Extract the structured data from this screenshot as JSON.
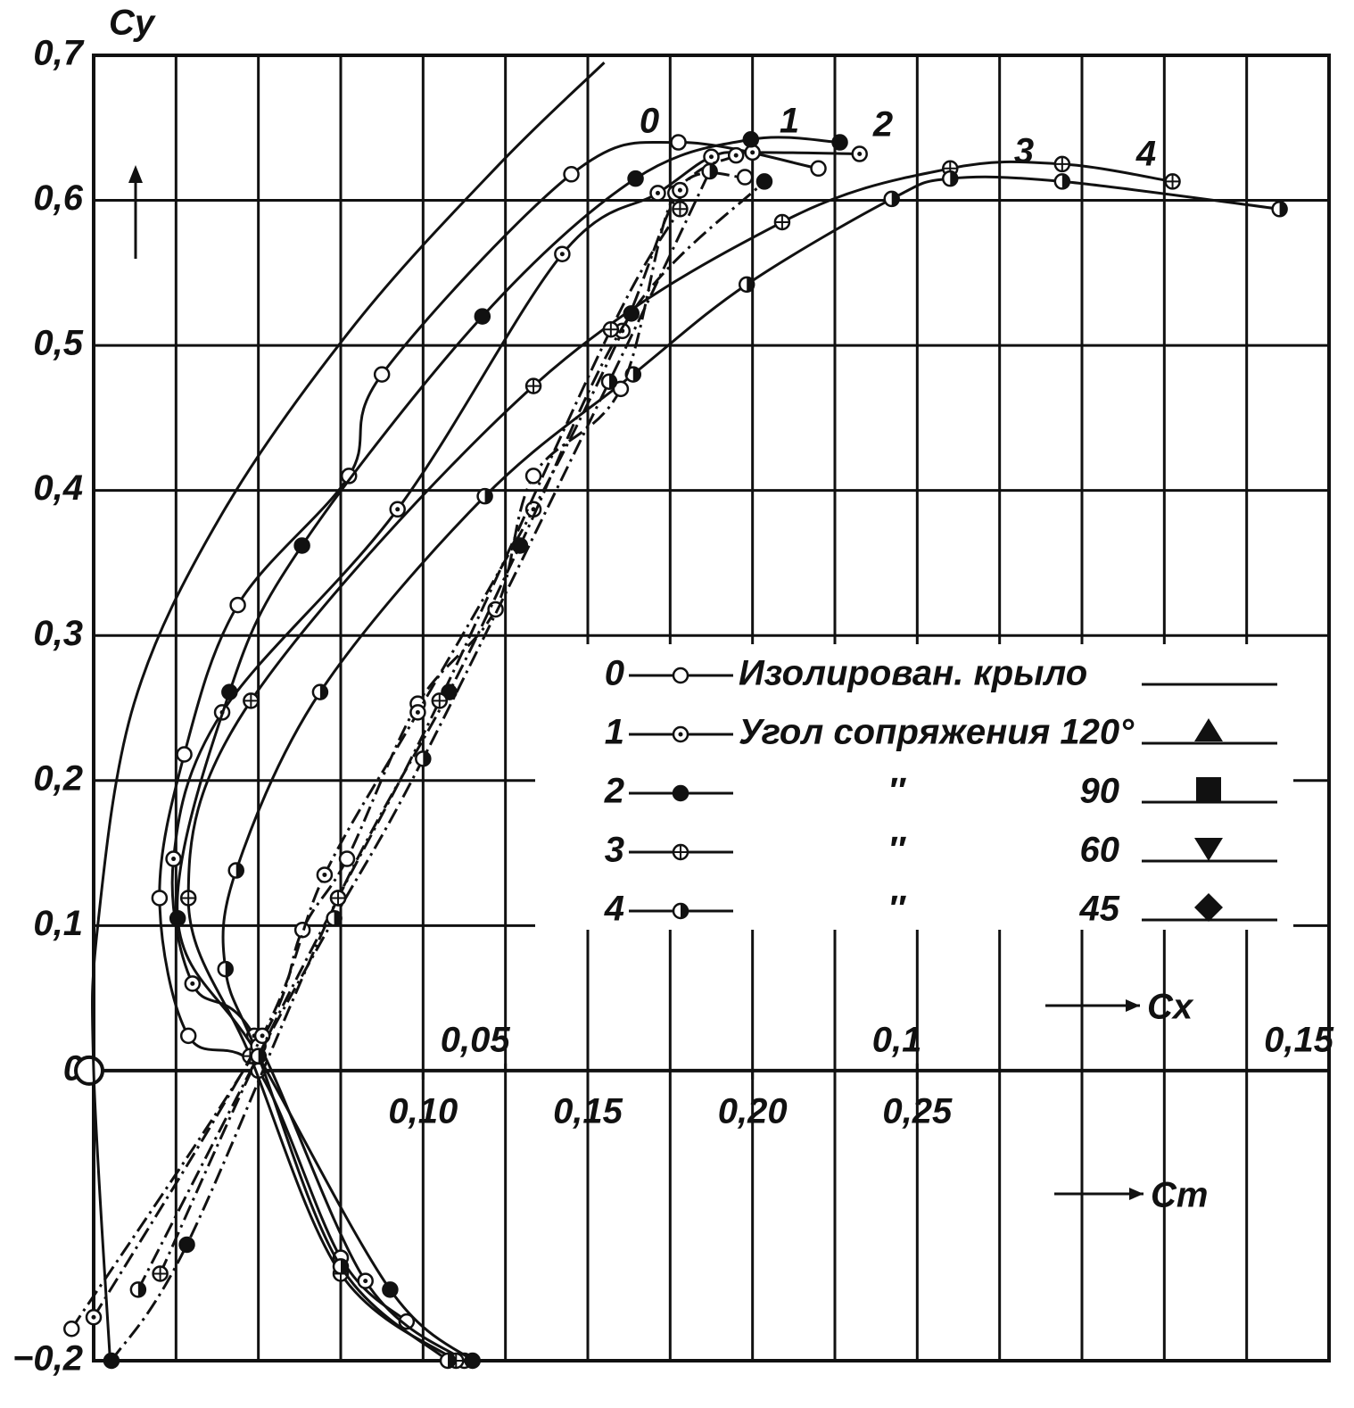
{
  "chart_data": {
    "type": "line",
    "y_label": "Cy",
    "x_label": "Cx",
    "x2_label": "Cm",
    "xlim": [
      0,
      0.15
    ],
    "xticks": [
      {
        "value": 0.05,
        "label": "0,05"
      },
      {
        "value": 0.1,
        "label": "0,1"
      },
      {
        "value": 0.15,
        "label": "0,15"
      }
    ],
    "xgrid": [
      0,
      0.01,
      0.02,
      0.03,
      0.04,
      0.05,
      0.06,
      0.07,
      0.08,
      0.09,
      0.1,
      0.11,
      0.12,
      0.13,
      0.14,
      0.15
    ],
    "x2lim": [
      0,
      0.375
    ],
    "x2ticks": [
      {
        "value": 0.1,
        "label": "0,10"
      },
      {
        "value": 0.15,
        "label": "0,15"
      },
      {
        "value": 0.2,
        "label": "0,20"
      },
      {
        "value": 0.25,
        "label": "0,25"
      }
    ],
    "ylim": [
      -0.2,
      0.7
    ],
    "yticks": [
      {
        "value": -0.2,
        "label": "−0,2"
      },
      0,
      {
        "value": 0.1,
        "label": "0,1"
      },
      {
        "value": 0.2,
        "label": "0,2"
      },
      {
        "value": 0.3,
        "label": "0,3"
      },
      {
        "value": 0.4,
        "label": "0,4"
      },
      {
        "value": 0.5,
        "label": "0,5"
      },
      {
        "value": 0.6,
        "label": "0,6"
      },
      {
        "value": 0.7,
        "label": "0,7"
      }
    ],
    "grid": true,
    "color": "#111111",
    "legend": [
      {
        "key": "0",
        "label": "Изолирован. крыло"
      },
      {
        "key": "1",
        "label": "Угол сопряжения 120°"
      },
      {
        "key": "2",
        "label": "″",
        "angle": 90
      },
      {
        "key": "3",
        "label": "″",
        "angle": 60
      },
      {
        "key": "4",
        "label": "″",
        "angle": 45
      }
    ],
    "series": [
      {
        "legend": 0,
        "axis": "x",
        "marker": "open",
        "x": [
          0.038,
          0.03,
          0.02,
          0.0115,
          0.008,
          0.011,
          0.0175,
          0.031,
          0.035,
          0.058,
          0.071,
          0.088
        ],
        "values": [
          -0.173,
          -0.129,
          0,
          0.024,
          0.119,
          0.218,
          0.321,
          0.41,
          0.48,
          0.618,
          0.64,
          0.622
        ]
      },
      {
        "legend": 1,
        "axis": "x",
        "marker": "dot",
        "x": [
          0.045,
          0.033,
          0.0195,
          0.012,
          0.0097,
          0.0156,
          0.0369,
          0.0569,
          0.0685,
          0.075,
          0.08,
          0.093
        ],
        "values": [
          -0.2,
          -0.145,
          0.024,
          0.06,
          0.146,
          0.247,
          0.387,
          0.563,
          0.605,
          0.63,
          0.633,
          0.632
        ]
      },
      {
        "legend": 2,
        "axis": "x",
        "marker": "filled",
        "x": [
          0.046,
          0.036,
          0.02,
          0.0102,
          0.0165,
          0.0253,
          0.0472,
          0.0658,
          0.0798,
          0.0906
        ],
        "values": [
          -0.2,
          -0.151,
          0.01,
          0.105,
          0.261,
          0.362,
          0.52,
          0.615,
          0.642,
          0.64
        ]
      },
      {
        "legend": 3,
        "axis": "x",
        "marker": "cross",
        "x": [
          0.044,
          0.03,
          0.019,
          0.0115,
          0.0191,
          0.0534,
          0.0836,
          0.104,
          0.1176,
          0.131
        ],
        "values": [
          -0.2,
          -0.14,
          0.01,
          0.119,
          0.255,
          0.472,
          0.585,
          0.622,
          0.625,
          0.613
        ]
      },
      {
        "legend": 4,
        "axis": "x",
        "marker": "half",
        "x": [
          0.043,
          0.03,
          0.02,
          0.016,
          0.0173,
          0.0275,
          0.0475,
          0.0655,
          0.0793,
          0.0969,
          0.104,
          0.1176,
          0.144
        ],
        "values": [
          -0.2,
          -0.135,
          0.01,
          0.07,
          0.138,
          0.261,
          0.396,
          0.48,
          0.542,
          0.601,
          0.615,
          0.613,
          0.594
        ]
      },
      {
        "axis": "x2",
        "marker": "open",
        "dash": "dash-dot",
        "x": [
          -0.0067,
          0.05,
          0.0634,
          0.0769,
          0.0984,
          0.122,
          0.1335,
          0.16,
          0.1766,
          0.1977
        ],
        "values": [
          -0.178,
          0.017,
          0.097,
          0.146,
          0.253,
          0.318,
          0.41,
          0.47,
          0.605,
          0.616
        ]
      },
      {
        "axis": "x2",
        "marker": "dot",
        "dash": "dash-dot",
        "x": [
          0,
          0.0512,
          0.0701,
          0.0984,
          0.1335,
          0.1605,
          0.178,
          0.195
        ],
        "values": [
          -0.17,
          0.024,
          0.135,
          0.247,
          0.387,
          0.51,
          0.607,
          0.631
        ]
      },
      {
        "axis": "x2",
        "marker": "filled",
        "dash": "dash-dot",
        "x": [
          0.0054,
          0.0283,
          0.0742,
          0.1079,
          0.1294,
          0.1632,
          0.2036
        ],
        "values": [
          -0.2,
          -0.12,
          0.119,
          0.261,
          0.362,
          0.522,
          0.613
        ]
      },
      {
        "axis": "x2",
        "marker": "cross",
        "dash": "dash-dot",
        "x": [
          0.0202,
          0.05,
          0.0742,
          0.105,
          0.157,
          0.178
        ],
        "values": [
          -0.14,
          0.01,
          0.119,
          0.255,
          0.511,
          0.594
        ]
      },
      {
        "axis": "x2",
        "marker": "half",
        "dash": "dash-dot",
        "x": [
          0.0135,
          0.05,
          0.073,
          0.1,
          0.1565,
          0.187
        ],
        "values": [
          -0.151,
          0.01,
          0.105,
          0.215,
          0.475,
          0.62
        ]
      },
      {
        "axis": "x",
        "marker": "none",
        "x": [
          0.002,
          0,
          0.0005,
          0.0049,
          0.0156,
          0.0318,
          0.0491,
          0.062
        ],
        "values": [
          -0.2,
          0,
          0.1,
          0.253,
          0.384,
          0.515,
          0.624,
          0.695
        ]
      }
    ]
  }
}
